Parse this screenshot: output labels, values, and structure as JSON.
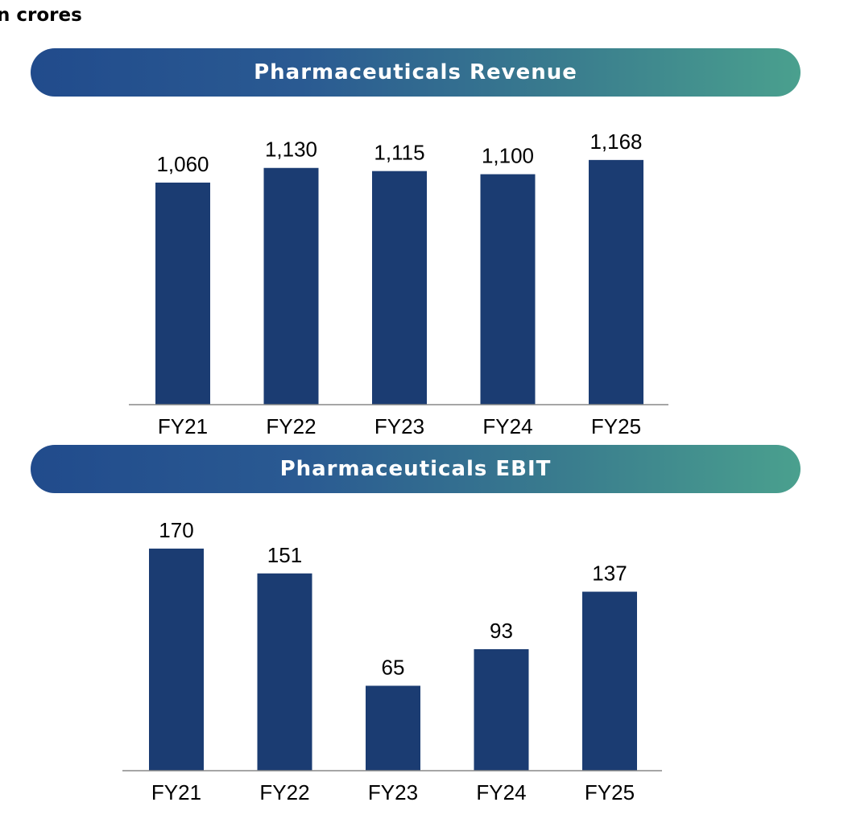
{
  "unit_label": "n crores",
  "chart_data": [
    {
      "type": "bar",
      "title": "Pharmaceuticals Revenue",
      "categories": [
        "FY21",
        "FY22",
        "FY23",
        "FY24",
        "FY25"
      ],
      "values": [
        1060,
        1130,
        1115,
        1100,
        1168
      ],
      "data_labels": [
        "1,060",
        "1,130",
        "1,115",
        "1,100",
        "1,168"
      ],
      "color": "#1b3c72",
      "ylim": [
        0,
        1200
      ],
      "grid": false,
      "legend": "none"
    },
    {
      "type": "bar",
      "title": "Pharmaceuticals EBIT",
      "categories": [
        "FY21",
        "FY22",
        "FY23",
        "FY24",
        "FY25"
      ],
      "values": [
        170,
        151,
        65,
        93,
        137
      ],
      "data_labels": [
        "170",
        "151",
        "65",
        "93",
        "137"
      ],
      "color": "#1b3c72",
      "ylim": [
        0,
        180
      ],
      "grid": false,
      "legend": "none"
    }
  ],
  "colors": {
    "banner_start": "#214b8c",
    "banner_end": "#4aa08e",
    "bar": "#1b3c72"
  }
}
